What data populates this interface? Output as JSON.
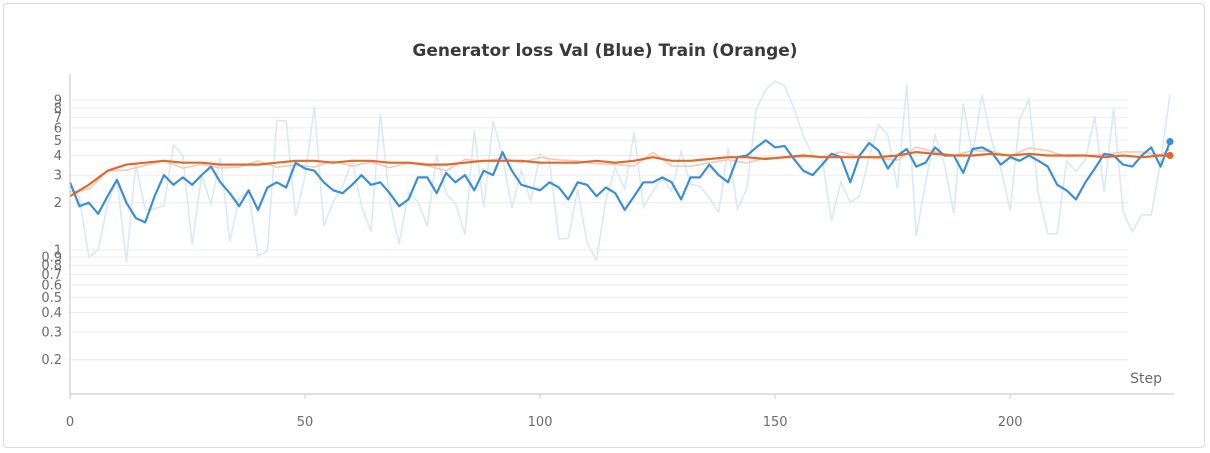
{
  "chart_data": {
    "type": "line",
    "title": "Generator loss Val (Blue) Train (Orange)",
    "xlabel": "Step",
    "ylabel": "",
    "yscale": "log",
    "xlim": [
      0,
      234
    ],
    "ylim": [
      0.16,
      10
    ],
    "xticks": [
      0,
      50,
      100,
      150,
      200
    ],
    "yticks": [
      0.2,
      0.3,
      0.4,
      0.5,
      0.6,
      0.7,
      0.8,
      0.9,
      1,
      2,
      3,
      4,
      5,
      6,
      7,
      8,
      9
    ],
    "yticklabels": [
      "0.2",
      "0.3",
      "0.4",
      "0.5",
      "0.6",
      "0.7",
      "0.8",
      "0.9",
      "1",
      "2",
      "3",
      "4",
      "5",
      "6",
      "7",
      "8",
      "9"
    ],
    "grid": true,
    "series": [
      {
        "color": "#3a8fd6",
        "raw_color": "#d9e9f7",
        "x": [
          0,
          2,
          4,
          6,
          8,
          10,
          12,
          14,
          16,
          18,
          20,
          22,
          24,
          26,
          28,
          30,
          32,
          34,
          36,
          38,
          40,
          42,
          44,
          46,
          48,
          50,
          52,
          54,
          56,
          58,
          60,
          62,
          64,
          66,
          68,
          70,
          72,
          74,
          76,
          78,
          80,
          82,
          84,
          86,
          88,
          90,
          92,
          94,
          96,
          98,
          100,
          102,
          104,
          106,
          108,
          110,
          112,
          114,
          116,
          118,
          120,
          122,
          124,
          126,
          128,
          130,
          132,
          134,
          136,
          138,
          140,
          142,
          144,
          146,
          148,
          150,
          152,
          154,
          156,
          158,
          160,
          162,
          164,
          166,
          168,
          170,
          172,
          174,
          176,
          178,
          180,
          182,
          184,
          186,
          188,
          190,
          192,
          194,
          196,
          198,
          200,
          202,
          204,
          206,
          208,
          210,
          212,
          214,
          216,
          218,
          220,
          222,
          224,
          226,
          228,
          230,
          232,
          234
        ],
        "values": [
          2.7,
          1.9,
          2.0,
          1.7,
          2.2,
          2.8,
          2.0,
          1.6,
          1.5,
          2.2,
          3.0,
          2.6,
          2.9,
          2.6,
          3.0,
          3.4,
          2.7,
          2.3,
          1.9,
          2.4,
          1.8,
          2.5,
          2.7,
          2.5,
          3.6,
          3.3,
          3.2,
          2.7,
          2.4,
          2.3,
          2.6,
          3.0,
          2.6,
          2.7,
          2.3,
          1.9,
          2.1,
          2.9,
          2.9,
          2.3,
          3.1,
          2.7,
          3.0,
          2.4,
          3.2,
          3.0,
          4.2,
          3.2,
          2.6,
          2.5,
          2.4,
          2.7,
          2.5,
          2.1,
          2.7,
          2.6,
          2.2,
          2.5,
          2.3,
          1.8,
          2.2,
          2.7,
          2.7,
          2.9,
          2.7,
          2.1,
          2.9,
          2.9,
          3.5,
          3.0,
          2.7,
          3.9,
          4.0,
          4.5,
          5.0,
          4.5,
          4.6,
          3.8,
          3.2,
          3.0,
          3.5,
          4.1,
          3.9,
          2.7,
          4.0,
          4.8,
          4.3,
          3.3,
          4.0,
          4.4,
          3.4,
          3.6,
          4.5,
          4.0,
          4.0,
          3.1,
          4.4,
          4.5,
          4.2,
          3.5,
          3.9,
          3.7,
          4.0,
          3.7,
          3.4,
          2.6,
          2.4,
          2.1,
          2.7,
          3.3,
          4.1,
          4.0,
          3.5,
          3.4,
          4.0,
          4.5,
          3.4,
          4.9
        ]
      },
      {
        "color": "#e2692a",
        "raw_color": "#f5c9b4",
        "x": [
          0,
          4,
          8,
          12,
          16,
          20,
          24,
          28,
          32,
          36,
          40,
          44,
          48,
          52,
          56,
          60,
          64,
          68,
          72,
          76,
          80,
          84,
          88,
          92,
          96,
          100,
          104,
          108,
          112,
          116,
          120,
          124,
          128,
          132,
          136,
          140,
          144,
          148,
          152,
          156,
          160,
          164,
          168,
          172,
          176,
          180,
          184,
          188,
          192,
          196,
          200,
          204,
          208,
          212,
          216,
          220,
          224,
          228,
          232,
          234
        ],
        "values": [
          2.2,
          2.6,
          3.2,
          3.5,
          3.6,
          3.7,
          3.6,
          3.6,
          3.5,
          3.5,
          3.5,
          3.6,
          3.7,
          3.7,
          3.6,
          3.7,
          3.7,
          3.6,
          3.6,
          3.5,
          3.5,
          3.6,
          3.7,
          3.7,
          3.7,
          3.6,
          3.6,
          3.6,
          3.7,
          3.6,
          3.7,
          3.9,
          3.7,
          3.7,
          3.8,
          3.9,
          3.9,
          3.8,
          3.9,
          4.0,
          3.9,
          3.9,
          3.9,
          3.9,
          4.0,
          4.2,
          4.1,
          4.0,
          4.0,
          4.1,
          4.0,
          4.1,
          4.0,
          4.0,
          4.0,
          3.9,
          4.0,
          3.9,
          4.0,
          4.0
        ]
      }
    ]
  }
}
